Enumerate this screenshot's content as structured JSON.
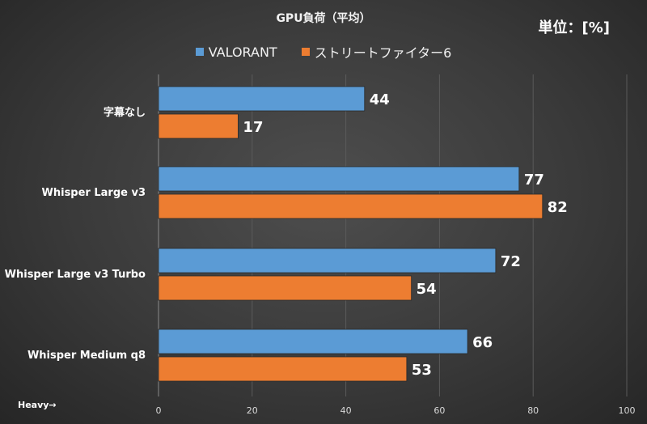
{
  "title": "GPU負荷（平均）",
  "unit_label": "単位：[%]",
  "footnote": "Heavy→",
  "colors": {
    "VALORANT": "#5b9bd5",
    "street_fighter": "#ed7d31"
  },
  "chart_data": {
    "type": "bar",
    "orientation": "horizontal",
    "categories": [
      "字幕なし",
      "Whisper Large v3",
      "Whisper Large v3 Turbo",
      "Whisper Medium q8"
    ],
    "series": [
      {
        "name": "VALORANT",
        "values": [
          44,
          77,
          72,
          66
        ]
      },
      {
        "name": "ストリートファイター6",
        "values": [
          17,
          82,
          54,
          53
        ]
      }
    ],
    "xlim": [
      0,
      100
    ],
    "xticks": [
      0,
      20,
      40,
      60,
      80,
      100
    ],
    "grid": true,
    "legend": "top-center"
  }
}
